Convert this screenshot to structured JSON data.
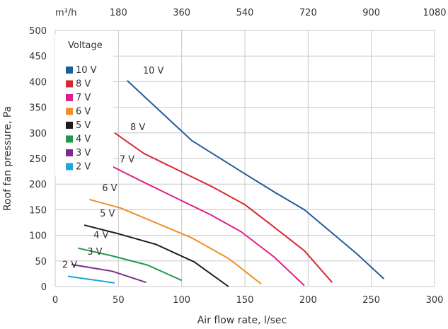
{
  "chart_data": {
    "type": "line",
    "xlabel": "Air flow rate, l/sec",
    "ylabel": "Roof fan pressure, Pa",
    "xlim": [
      0,
      300
    ],
    "ylim": [
      0,
      500
    ],
    "x_ticks": [
      0,
      50,
      100,
      150,
      200,
      250,
      300
    ],
    "y_ticks": [
      0,
      50,
      100,
      150,
      200,
      250,
      300,
      350,
      400,
      450,
      500
    ],
    "grid": true,
    "secondary_x_axis": {
      "position": "top",
      "unit_label": "m³/h",
      "ticks": [
        180,
        360,
        540,
        720,
        900,
        1080
      ],
      "tick_positions_lps": [
        50,
        100,
        150,
        200,
        250,
        300
      ]
    },
    "legend": {
      "title": "Voltage",
      "position": "top-left"
    },
    "series": [
      {
        "name": "10 V",
        "label": "10 V",
        "color": "#1f5c9e",
        "x": [
          57,
          108,
          150,
          173,
          197,
          238,
          260
        ],
        "y": [
          402,
          285,
          220,
          185,
          150,
          65,
          15
        ]
      },
      {
        "name": "8 V",
        "label": "8 V",
        "color": "#d62a32",
        "x": [
          47,
          70,
          124,
          150,
          171,
          197,
          219
        ],
        "y": [
          300,
          260,
          195,
          160,
          120,
          70,
          8
        ]
      },
      {
        "name": "7 V",
        "label": "7 V",
        "color": "#de1f8c",
        "x": [
          43,
          73,
          123,
          147,
          173,
          197
        ],
        "y": [
          237,
          200,
          140,
          107,
          58,
          2
        ]
      },
      {
        "name": "6 V",
        "label": "6 V",
        "color": "#ef8f2a",
        "x": [
          27,
          52,
          108,
          137,
          163
        ],
        "y": [
          170,
          153,
          95,
          55,
          5
        ]
      },
      {
        "name": "5 V",
        "label": "5 V",
        "color": "#1c1c1c",
        "x": [
          23,
          50,
          80,
          110,
          137
        ],
        "y": [
          120,
          103,
          82,
          48,
          0
        ]
      },
      {
        "name": "4 V",
        "label": "4 V",
        "color": "#1f9a4a",
        "x": [
          18,
          45,
          73,
          100
        ],
        "y": [
          75,
          60,
          42,
          12
        ]
      },
      {
        "name": "3 V",
        "label": "3 V",
        "color": "#7b2d8e",
        "x": [
          13,
          45,
          72
        ],
        "y": [
          43,
          30,
          8
        ]
      },
      {
        "name": "2 V",
        "label": "2 V",
        "color": "#23a4dd",
        "x": [
          10,
          47
        ],
        "y": [
          20,
          7
        ]
      }
    ]
  }
}
